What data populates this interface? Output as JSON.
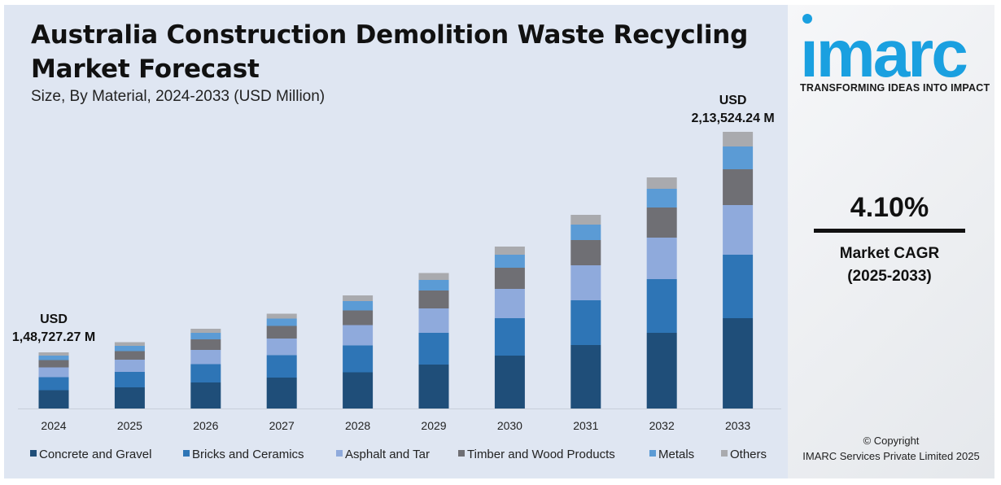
{
  "title": "Australia Construction Demolition Waste Recycling Market Forecast",
  "subtitle": "Size, By Material, 2024-2033 (USD Million)",
  "brand": {
    "name": "imarc",
    "tagline": "TRANSFORMING IDEAS INTO IMPACT",
    "color": "#1aa0e0"
  },
  "cagr": {
    "value": "4.10%",
    "label_line1": "Market CAGR",
    "label_line2": "(2025-2033)"
  },
  "copyright": {
    "line1": "© Copyright",
    "line2": "IMARC Services Private Limited 2025"
  },
  "annotations": {
    "start_currency": "USD",
    "start_value": "1,48,727.27 M",
    "end_currency": "USD",
    "end_value": "2,13,524.24 M"
  },
  "chart_data": {
    "type": "bar",
    "stacked": true,
    "title": "Australia Construction Demolition Waste Recycling Market Forecast",
    "subtitle": "Size, By Material, 2024-2033 (USD Million)",
    "xlabel": "",
    "ylabel": "",
    "legend_position": "bottom",
    "categories": [
      "2024",
      "2025",
      "2026",
      "2027",
      "2028",
      "2029",
      "2030",
      "2031",
      "2032",
      "2033"
    ],
    "series": [
      {
        "name": "Concrete and Gravel",
        "color": "#1f4e79",
        "values": [
          22.5,
          26,
          32,
          38,
          44.5,
          54,
          65,
          78,
          93,
          111
        ]
      },
      {
        "name": "Bricks and Ceramics",
        "color": "#2e75b6",
        "values": [
          16,
          19,
          22.5,
          27.5,
          33,
          39,
          46,
          55,
          66,
          78
        ]
      },
      {
        "name": "Asphalt and Tar",
        "color": "#8faadc",
        "values": [
          12,
          15,
          17.5,
          20.5,
          25,
          30,
          36,
          43,
          51,
          61
        ]
      },
      {
        "name": "Timber and Wood Products",
        "color": "#6f6f74",
        "values": [
          9,
          10.5,
          13,
          15.5,
          18,
          22,
          26,
          31,
          37,
          44
        ]
      },
      {
        "name": "Metals",
        "color": "#5b9bd5",
        "values": [
          5.5,
          6.5,
          8,
          9,
          11.5,
          13,
          16,
          19,
          23,
          28
        ]
      },
      {
        "name": "Others",
        "color": "#a9aaae",
        "values": [
          4,
          4.5,
          5,
          6,
          7,
          8.5,
          10,
          12,
          14,
          18
        ]
      }
    ],
    "ylim": [
      0,
      340
    ],
    "grid": false
  }
}
